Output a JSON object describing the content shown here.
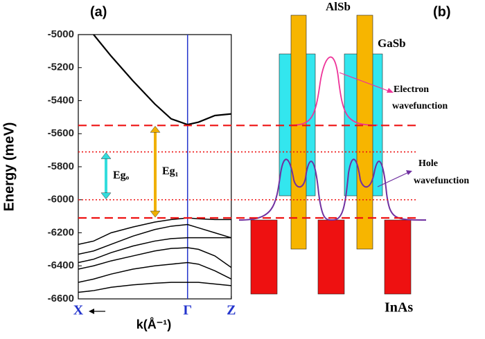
{
  "chart_data": {
    "type": "line",
    "panel_label": "(a)",
    "ylabel": "Energy (meV)",
    "xlabel": "k(Å⁻¹)",
    "x": [
      0,
      0.14,
      0.3,
      0.5,
      0.7,
      0.85,
      1,
      1.1,
      1.25,
      1.4
    ],
    "series": [
      {
        "color": "#000000",
        "values": [
          null,
          -5000,
          -5130,
          -5280,
          -5420,
          -5510,
          -5545,
          -5530,
          -5490,
          -5480
        ]
      },
      {
        "color": "#000000",
        "values": [
          -6270,
          -6250,
          -6200,
          -6165,
          -6135,
          -6120,
          -6110,
          -6115,
          -6120,
          -6120
        ]
      },
      {
        "color": "#000000",
        "values": [
          -6330,
          -6310,
          -6270,
          -6220,
          -6180,
          -6160,
          -6150,
          -6170,
          -6200,
          -6230
        ]
      },
      {
        "color": "#000000",
        "values": [
          -6380,
          -6360,
          -6320,
          -6280,
          -6250,
          -6235,
          -6230,
          -6230,
          -6230,
          -6230
        ]
      },
      {
        "color": "#000000",
        "values": [
          -6420,
          -6400,
          -6370,
          -6340,
          -6310,
          -6295,
          -6290,
          -6300,
          -6340,
          -6410
        ]
      },
      {
        "color": "#000000",
        "values": [
          -6500,
          -6480,
          -6450,
          -6420,
          -6400,
          -6390,
          -6380,
          -6390,
          -6430,
          -6480
        ]
      },
      {
        "color": "#000000",
        "values": [
          -6560,
          -6550,
          -6530,
          -6515,
          -6505,
          -6500,
          -6500,
          -6500,
          -6510,
          -6520
        ]
      }
    ],
    "xlim": [
      0,
      1.4
    ],
    "xticks": [
      {
        "value": 0,
        "label": "X"
      },
      {
        "value": 1,
        "label": "Γ"
      },
      {
        "value": 1.4,
        "label": "Z"
      }
    ],
    "ylim": [
      -6600,
      -5000
    ],
    "yticks": [
      -6600,
      -6400,
      -6200,
      -6000,
      -5800,
      -5600,
      -5400,
      -5200,
      -5000
    ],
    "dashed_lines": [
      -5550,
      -6110
    ],
    "dotted_lines": [
      -5710,
      -6000
    ],
    "annotations": [
      {
        "text": "Egₒ",
        "color": "#33dddd"
      },
      {
        "text": "Eg₁",
        "color": "#f0b000"
      }
    ]
  },
  "diagram": {
    "panel_label": "(b)",
    "labels": [
      "AlSb",
      "GaSb",
      "InAs"
    ],
    "electron": [
      "Electron",
      "wavefunction"
    ],
    "hole": [
      "Hole",
      "wavefunction"
    ]
  }
}
